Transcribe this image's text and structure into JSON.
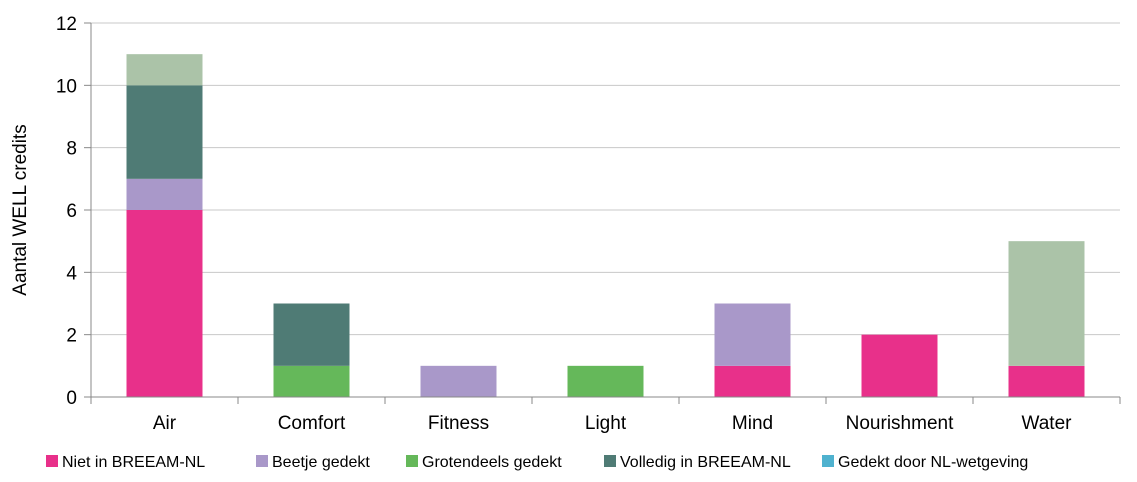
{
  "chart_data": {
    "type": "bar",
    "stacked": true,
    "categories": [
      "Air",
      "Comfort",
      "Fitness",
      "Light",
      "Mind",
      "Nourishment",
      "Water"
    ],
    "ylabel": "Aantal WELL credits",
    "xlabel": "",
    "ylim": [
      0,
      12
    ],
    "yticks": [
      "0",
      "2",
      "4",
      "6",
      "8",
      "10",
      "12"
    ],
    "grid": true,
    "legend_position": "bottom",
    "series": [
      {
        "name": "Niet in BREEAM-NL",
        "color": "#e8308a",
        "values": [
          6,
          0,
          0,
          0,
          1,
          2,
          1
        ]
      },
      {
        "name": "Beetje gedekt",
        "color": "#a998c9",
        "values": [
          1,
          0,
          1,
          0,
          2,
          0,
          0
        ]
      },
      {
        "name": "Grotendeels gedekt",
        "color": "#65b85a",
        "values": [
          0,
          1,
          0,
          1,
          0,
          0,
          0
        ]
      },
      {
        "name": "Volledig in BREEAM-NL",
        "color": "#4f7b75",
        "values": [
          3,
          2,
          0,
          0,
          0,
          0,
          0
        ]
      },
      {
        "name": "Gedekt door NL-wetgeving",
        "color": "#4fb2cf",
        "values": [
          0,
          0,
          0,
          0,
          0,
          0,
          0
        ]
      },
      {
        "name": "",
        "color": "#abc3a8",
        "values": [
          1,
          0,
          0,
          0,
          0,
          0,
          4
        ]
      }
    ],
    "legend": [
      "Niet in BREEAM-NL",
      "Beetje gedekt",
      "Grotendeels gedekt",
      "Volledig in BREEAM-NL",
      "Gedekt door NL-wetgeving"
    ]
  }
}
